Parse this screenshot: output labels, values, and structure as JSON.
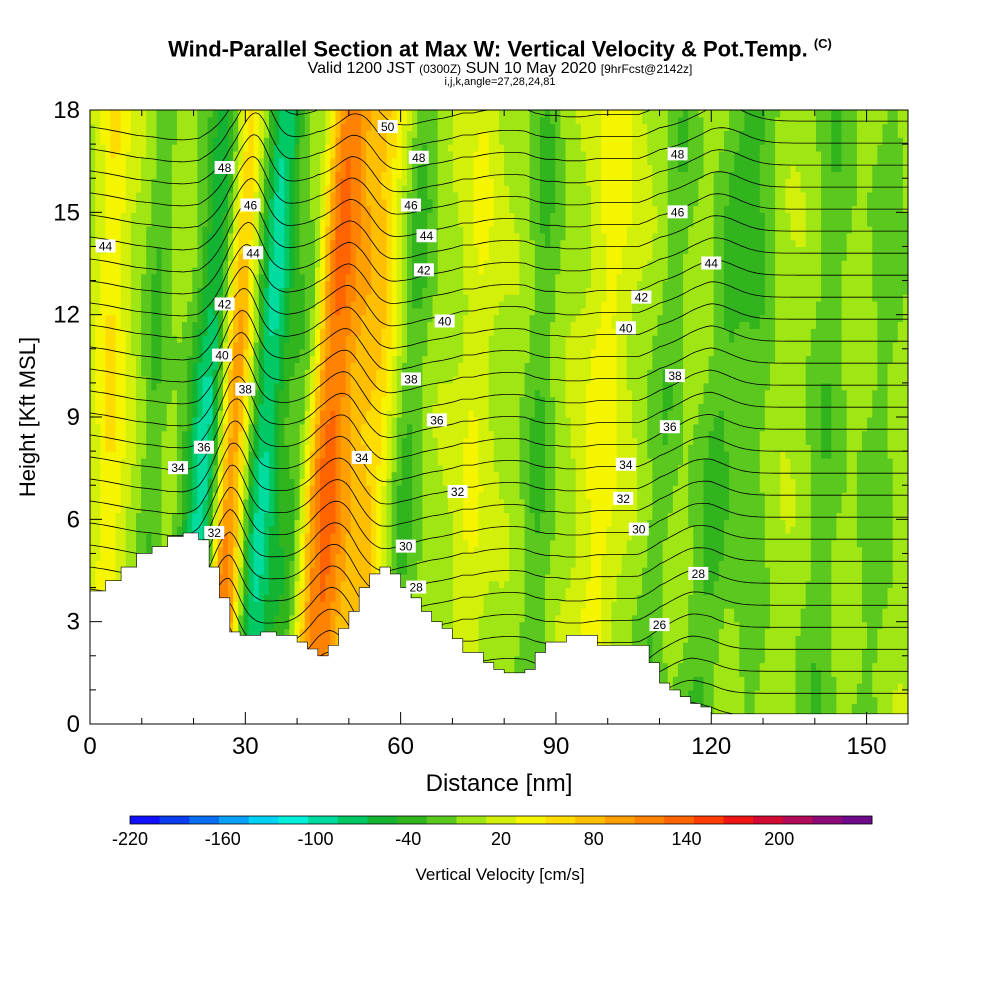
{
  "title": {
    "main": "Wind-Parallel Section at Max W: Vertical Velocity & Pot.Temp.",
    "copyright": "(C)",
    "valid_prefix": "Valid 1200 JST",
    "valid_zulu": "(0300Z)",
    "valid_date": "SUN 10 May 2020",
    "forecast": "[9hrFcst@2142z]",
    "indices": "i,j,k,angle=27,28,24,81"
  },
  "chart_data": {
    "type": "heatmap",
    "xlabel": "Distance [nm]",
    "ylabel": "Height [Kft MSL]",
    "xlim": [
      0,
      158
    ],
    "ylim": [
      0,
      18
    ],
    "x_ticks": [
      "0",
      "30",
      "60",
      "90",
      "120",
      "150"
    ],
    "x_tick_values": [
      0,
      30,
      60,
      90,
      120,
      150
    ],
    "y_ticks": [
      "0",
      "3",
      "6",
      "9",
      "12",
      "15",
      "18"
    ],
    "y_tick_values": [
      0,
      3,
      6,
      9,
      12,
      15,
      18
    ],
    "colorbar": {
      "label": "Vertical Velocity [cm/s]",
      "range": [
        -220,
        240
      ],
      "step": 20,
      "tick_labels": [
        "-220",
        "-160",
        "-100",
        "-40",
        "20",
        "80",
        "140",
        "200"
      ],
      "tick_values": [
        -220,
        -160,
        -100,
        -40,
        20,
        80,
        140,
        200
      ],
      "colors": [
        "#1010ff",
        "#0a3cf0",
        "#0a6ef0",
        "#0aa0f5",
        "#00d2f5",
        "#00f0dc",
        "#00dca0",
        "#00c864",
        "#14b432",
        "#32b41e",
        "#5ac81e",
        "#a0e614",
        "#d2f00a",
        "#f5f500",
        "#ffdc00",
        "#ffbe00",
        "#ffa000",
        "#ff8200",
        "#ff6400",
        "#ff3c00",
        "#f01414",
        "#d20a32",
        "#b40a5a",
        "#8c0a78",
        "#6e0a8c"
      ]
    },
    "terrain_kft": [
      [
        0,
        3.9
      ],
      [
        3,
        4.2
      ],
      [
        6,
        4.6
      ],
      [
        9,
        5.0
      ],
      [
        12,
        5.2
      ],
      [
        15,
        5.5
      ],
      [
        18,
        5.6
      ],
      [
        21,
        5.4
      ],
      [
        23,
        4.6
      ],
      [
        25,
        3.7
      ],
      [
        27,
        2.7
      ],
      [
        29,
        2.6
      ],
      [
        31,
        2.6
      ],
      [
        33,
        2.7
      ],
      [
        36,
        2.6
      ],
      [
        38,
        2.6
      ],
      [
        40,
        2.4
      ],
      [
        42,
        2.2
      ],
      [
        44,
        2.0
      ],
      [
        46,
        2.3
      ],
      [
        48,
        2.8
      ],
      [
        50,
        3.3
      ],
      [
        52,
        4.0
      ],
      [
        54,
        4.4
      ],
      [
        56,
        4.6
      ],
      [
        58,
        4.4
      ],
      [
        60,
        4.0
      ],
      [
        62,
        3.7
      ],
      [
        64,
        3.3
      ],
      [
        66,
        3.0
      ],
      [
        68,
        2.8
      ],
      [
        70,
        2.5
      ],
      [
        72,
        2.1
      ],
      [
        74,
        2.1
      ],
      [
        76,
        1.8
      ],
      [
        78,
        1.6
      ],
      [
        80,
        1.5
      ],
      [
        82,
        1.5
      ],
      [
        84,
        1.6
      ],
      [
        86,
        2.1
      ],
      [
        88,
        2.4
      ],
      [
        90,
        2.4
      ],
      [
        92,
        2.6
      ],
      [
        95,
        2.6
      ],
      [
        98,
        2.3
      ],
      [
        102,
        2.3
      ],
      [
        106,
        2.3
      ],
      [
        108,
        1.8
      ],
      [
        110,
        1.2
      ],
      [
        112,
        1.0
      ],
      [
        114,
        0.8
      ],
      [
        116,
        0.6
      ],
      [
        118,
        0.5
      ],
      [
        120,
        0.3
      ],
      [
        124,
        0.3
      ],
      [
        130,
        0.3
      ],
      [
        140,
        0.3
      ],
      [
        150,
        0.3
      ],
      [
        158,
        0.3
      ]
    ],
    "velocity_bands": [
      {
        "x_base": 19,
        "slant": 0.55,
        "width": 4.5,
        "value": -140
      },
      {
        "x_base": 24,
        "slant": 0.35,
        "width": 3.5,
        "value": 170
      },
      {
        "x_base": 30,
        "slant": 0.45,
        "width": 3.5,
        "value": -100
      },
      {
        "x_base": 43,
        "slant": 0.38,
        "width": 5.0,
        "value": 130
      },
      {
        "x_base": 36,
        "slant": 0.55,
        "width": 3.0,
        "value": -60
      },
      {
        "x_base": 52,
        "slant": 0.3,
        "width": 4.0,
        "value": 60
      },
      {
        "x_base": 58,
        "slant": 0.4,
        "width": 3.0,
        "value": -40
      },
      {
        "x_base": 3,
        "slant": 0.1,
        "width": 3.0,
        "value": 45
      },
      {
        "x_base": 10,
        "slant": 0.25,
        "width": 2.5,
        "value": -35
      },
      {
        "x_base": 72,
        "slant": 0.25,
        "width": 3.0,
        "value": 25
      },
      {
        "x_base": 85,
        "slant": 0.2,
        "width": 3.0,
        "value": -35
      },
      {
        "x_base": 96,
        "slant": 0.35,
        "width": 4.0,
        "value": 35
      },
      {
        "x_base": 107,
        "slant": 0.45,
        "width": 3.0,
        "value": -30
      },
      {
        "x_base": 117,
        "slant": 0.55,
        "width": 4.0,
        "value": -40
      },
      {
        "x_base": 127,
        "slant": 0.2,
        "width": 3.0,
        "value": -25
      },
      {
        "x_base": 140,
        "slant": 0.25,
        "width": 3.5,
        "value": -30
      },
      {
        "x_base": 150,
        "slant": 0.3,
        "width": 3.5,
        "value": -25
      }
    ],
    "theta_label_sets": [
      [
        [
          3.0,
          14.0,
          "44"
        ]
      ],
      [
        [
          17.0,
          7.5,
          "34"
        ],
        [
          22.0,
          8.1,
          "36"
        ],
        [
          24.0,
          5.6,
          "32"
        ],
        [
          25.5,
          10.8,
          "40"
        ],
        [
          26.0,
          12.3,
          "42"
        ],
        [
          26.0,
          16.3,
          "48"
        ],
        [
          30.0,
          9.8,
          "38"
        ],
        [
          31.0,
          15.2,
          "46"
        ],
        [
          31.5,
          13.8,
          "44"
        ]
      ],
      [
        [
          52.5,
          7.8,
          "34"
        ],
        [
          57.5,
          17.5,
          "50"
        ],
        [
          61.0,
          5.2,
          "30"
        ],
        [
          62.0,
          10.1,
          "38"
        ],
        [
          62.0,
          15.2,
          "46"
        ],
        [
          63.0,
          4.0,
          "28"
        ],
        [
          63.5,
          16.6,
          "48"
        ],
        [
          64.5,
          13.3,
          "42"
        ],
        [
          65.0,
          14.3,
          "44"
        ],
        [
          67.0,
          8.9,
          "36"
        ],
        [
          68.5,
          11.8,
          "40"
        ],
        [
          71.0,
          6.8,
          "32"
        ]
      ],
      [
        [
          103.0,
          6.6,
          "32"
        ],
        [
          103.5,
          7.6,
          "34"
        ],
        [
          103.5,
          11.6,
          "40"
        ],
        [
          106.0,
          5.7,
          "30"
        ],
        [
          106.5,
          12.5,
          "42"
        ],
        [
          110.0,
          2.9,
          "26"
        ],
        [
          112.0,
          8.7,
          "36"
        ],
        [
          113.0,
          10.2,
          "38"
        ],
        [
          113.5,
          15.0,
          "46"
        ],
        [
          113.5,
          16.7,
          "48"
        ],
        [
          117.5,
          4.4,
          "28"
        ],
        [
          120.0,
          13.5,
          "44"
        ]
      ]
    ]
  }
}
